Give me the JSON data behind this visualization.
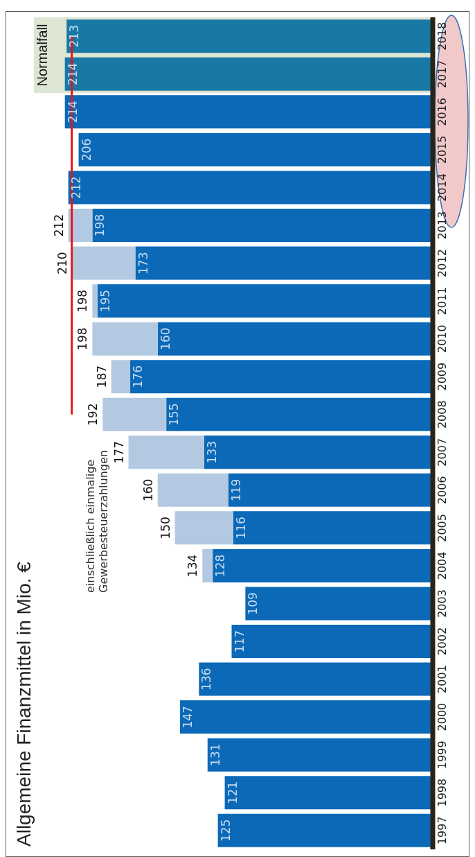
{
  "chart_data": {
    "type": "bar",
    "title": "Allgemeine Finanzmittel in Mio. €",
    "orientation": "horizontal",
    "categories": [
      "2018",
      "2017",
      "2016",
      "2015",
      "2014",
      "2013",
      "2012",
      "2011",
      "2010",
      "2009",
      "2008",
      "2007",
      "2006",
      "2005",
      "2004",
      "2003",
      "2002",
      "2001",
      "2000",
      "1999",
      "1998",
      "1997"
    ],
    "stacked": true,
    "series": [
      {
        "color": "#0b69b7",
        "colors": [
          "#1878a6",
          "#1878a6",
          "#0b69b7",
          "#0b69b7",
          "#0b69b7",
          "#0b69b7",
          "#0b69b7",
          "#0b69b7",
          "#0b69b7",
          "#0b69b7",
          "#0b69b7",
          "#0b69b7",
          "#0b69b7",
          "#0b69b7",
          "#0b69b7",
          "#0b69b7",
          "#0b69b7",
          "#0b69b7",
          "#0b69b7",
          "#0b69b7",
          "#0b69b7",
          "#0b69b7"
        ],
        "values": [
          213,
          214,
          214,
          206,
          212,
          198,
          173,
          195,
          160,
          176,
          155,
          133,
          119,
          116,
          128,
          109,
          117,
          136,
          147,
          131,
          121,
          125
        ],
        "value_labels": [
          "213",
          "214",
          "214",
          "206",
          "212",
          "198",
          "173",
          "195",
          "160",
          "176",
          "155",
          "133",
          "119",
          "116",
          "128",
          "109",
          "117",
          "136",
          "147",
          "131",
          "121",
          "125"
        ]
      },
      {
        "color": "#b3c9e2",
        "values": [
          null,
          null,
          null,
          null,
          null,
          14,
          37,
          3,
          38,
          11,
          37,
          44,
          41,
          34,
          6,
          null,
          null,
          null,
          null,
          null,
          null,
          null
        ]
      },
      {
        "type": "line",
        "color": "#e8141c",
        "values": [
          210,
          210,
          210,
          210,
          210,
          210,
          210,
          210,
          210,
          210,
          210,
          null,
          null,
          null,
          null,
          null,
          null,
          null,
          null,
          null,
          null,
          null
        ]
      }
    ],
    "totals": [
      null,
      null,
      null,
      null,
      null,
      "212",
      "210",
      "198",
      "198",
      "187",
      "192",
      "177",
      "160",
      "150",
      "134",
      null,
      null,
      null,
      null,
      null,
      null,
      null
    ],
    "bands": [
      {
        "axis": "y",
        "from": "2017",
        "to": "2018",
        "label": "Normalfall",
        "color": "#dde5d3"
      }
    ],
    "annotations": [
      "einschließlich einmalige Gewerbesteuerzahlungen"
    ],
    "grid": false,
    "legend": false
  }
}
